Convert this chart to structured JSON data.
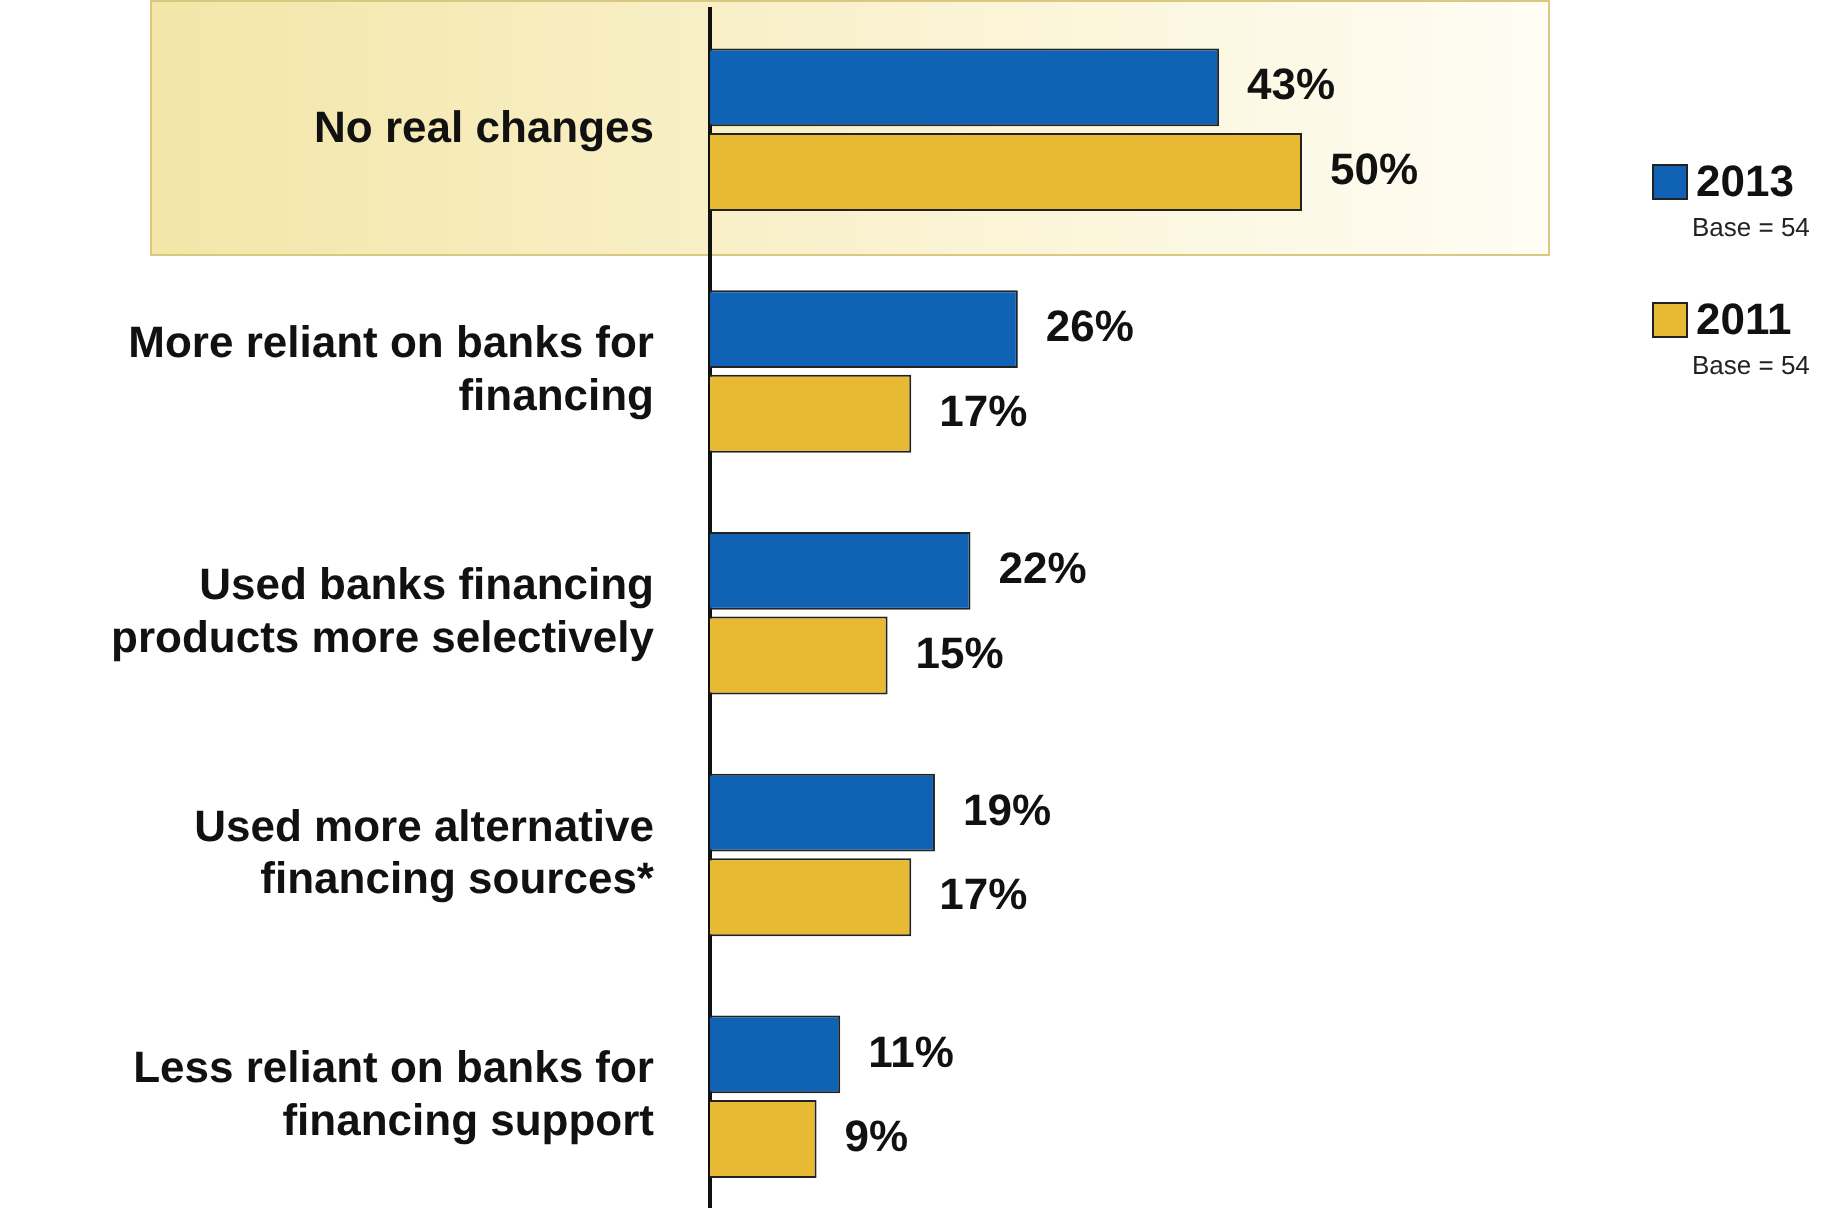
{
  "chart_data": {
    "type": "bar",
    "orientation": "horizontal",
    "categories": [
      "No real changes",
      "More reliant on banks for financing",
      "Used banks financing products more selectively",
      "Used more alternative financing sources*",
      "Less reliant on banks for financing support"
    ],
    "series": [
      {
        "name": "2013",
        "color": "#1062b4",
        "values": [
          43,
          26,
          22,
          19,
          11
        ],
        "value_labels": [
          "43%",
          "26%",
          "22%",
          "19%",
          "11%"
        ]
      },
      {
        "name": "2011",
        "color": "#e8b932",
        "values": [
          50,
          17,
          15,
          17,
          9
        ],
        "value_labels": [
          "50%",
          "17%",
          "15%",
          "17%",
          "9%"
        ]
      }
    ],
    "tick_labels": "y",
    "legend": "right",
    "annotations": [
      "Base = 54",
      "Base = 54"
    ]
  }
}
